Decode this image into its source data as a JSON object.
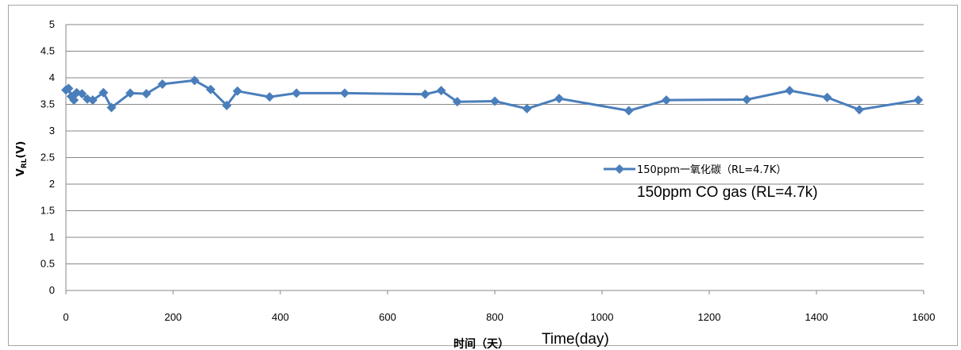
{
  "chart_data": {
    "type": "line",
    "ylabel_main": "V",
    "ylabel_sub": "RL",
    "ylabel_tail": "(V)",
    "xlabel_cn": "时间（天）",
    "xlabel_en": "Time(day)",
    "xlim": [
      0,
      1600
    ],
    "ylim": [
      0,
      5
    ],
    "x_ticks": [
      "0",
      "200",
      "400",
      "600",
      "800",
      "1000",
      "1200",
      "1400",
      "1600"
    ],
    "y_ticks": [
      "0",
      "0.5",
      "1",
      "1.5",
      "2",
      "2.5",
      "3",
      "3.5",
      "4",
      "4.5",
      "5"
    ],
    "grid": true,
    "legend_position": "right",
    "legend_note": "150ppm CO gas (RL=4.7k)",
    "series": [
      {
        "name": "150ppm一氧化碳（RL=4.7K）",
        "color": "#4a7ebb",
        "marker": "diamond",
        "x": [
          0,
          5,
          10,
          15,
          20,
          30,
          40,
          50,
          70,
          85,
          120,
          150,
          180,
          240,
          270,
          300,
          320,
          380,
          430,
          520,
          670,
          700,
          730,
          800,
          860,
          920,
          1050,
          1120,
          1270,
          1350,
          1420,
          1480,
          1590
        ],
        "y": [
          3.77,
          3.8,
          3.65,
          3.58,
          3.72,
          3.7,
          3.6,
          3.58,
          3.72,
          3.44,
          3.71,
          3.7,
          3.88,
          3.95,
          3.78,
          3.48,
          3.75,
          3.64,
          3.71,
          3.71,
          3.69,
          3.76,
          3.55,
          3.56,
          3.42,
          3.61,
          3.38,
          3.58,
          3.59,
          3.76,
          3.63,
          3.4,
          3.58
        ]
      }
    ]
  }
}
